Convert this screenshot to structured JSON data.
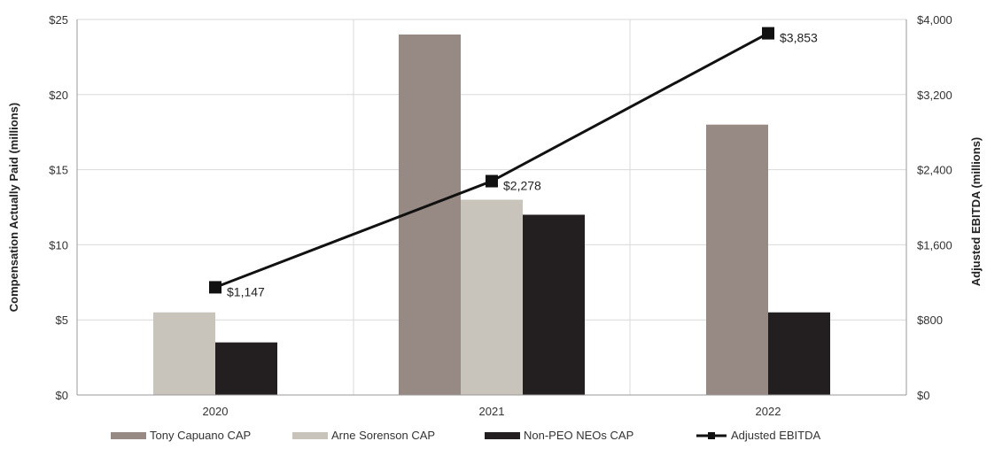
{
  "chart_data": {
    "type": "bar",
    "categories": [
      "2020",
      "2021",
      "2022"
    ],
    "series": [
      {
        "name": "Tony Capuano CAP",
        "axis": "left",
        "values": [
          null,
          24,
          18
        ],
        "color": "#978a84"
      },
      {
        "name": "Arne Sorenson CAP",
        "axis": "left",
        "values": [
          5.5,
          13,
          null
        ],
        "color": "#c8c3bb"
      },
      {
        "name": "Non-PEO NEOs CAP",
        "axis": "left",
        "values": [
          3.5,
          12,
          5.5
        ],
        "color": "#231f20"
      },
      {
        "name": "Adjusted EBITDA",
        "axis": "right",
        "type": "line",
        "values": [
          1147,
          2278,
          3853
        ],
        "color": "#111111"
      }
    ],
    "ylabel": "Compensation Actually Paid (millions)",
    "y2label": "Adjusted EBITDA (millions)",
    "ylim": [
      0,
      25
    ],
    "y2lim": [
      0,
      4000
    ],
    "yticks": [
      "$0",
      "$5",
      "$10",
      "$15",
      "$20",
      "$25"
    ],
    "y2ticks": [
      "$0",
      "$800",
      "$1,600",
      "$2,400",
      "$3,200",
      "$4,000"
    ],
    "data_labels": [
      "$1,147",
      "$2,278",
      "$3,853"
    ],
    "legend": {
      "position": "bottom",
      "entries": [
        "Tony Capuano CAP",
        "Arne Sorenson CAP",
        "Non-PEO NEOs CAP",
        "Adjusted EBITDA"
      ]
    },
    "grid": true
  }
}
